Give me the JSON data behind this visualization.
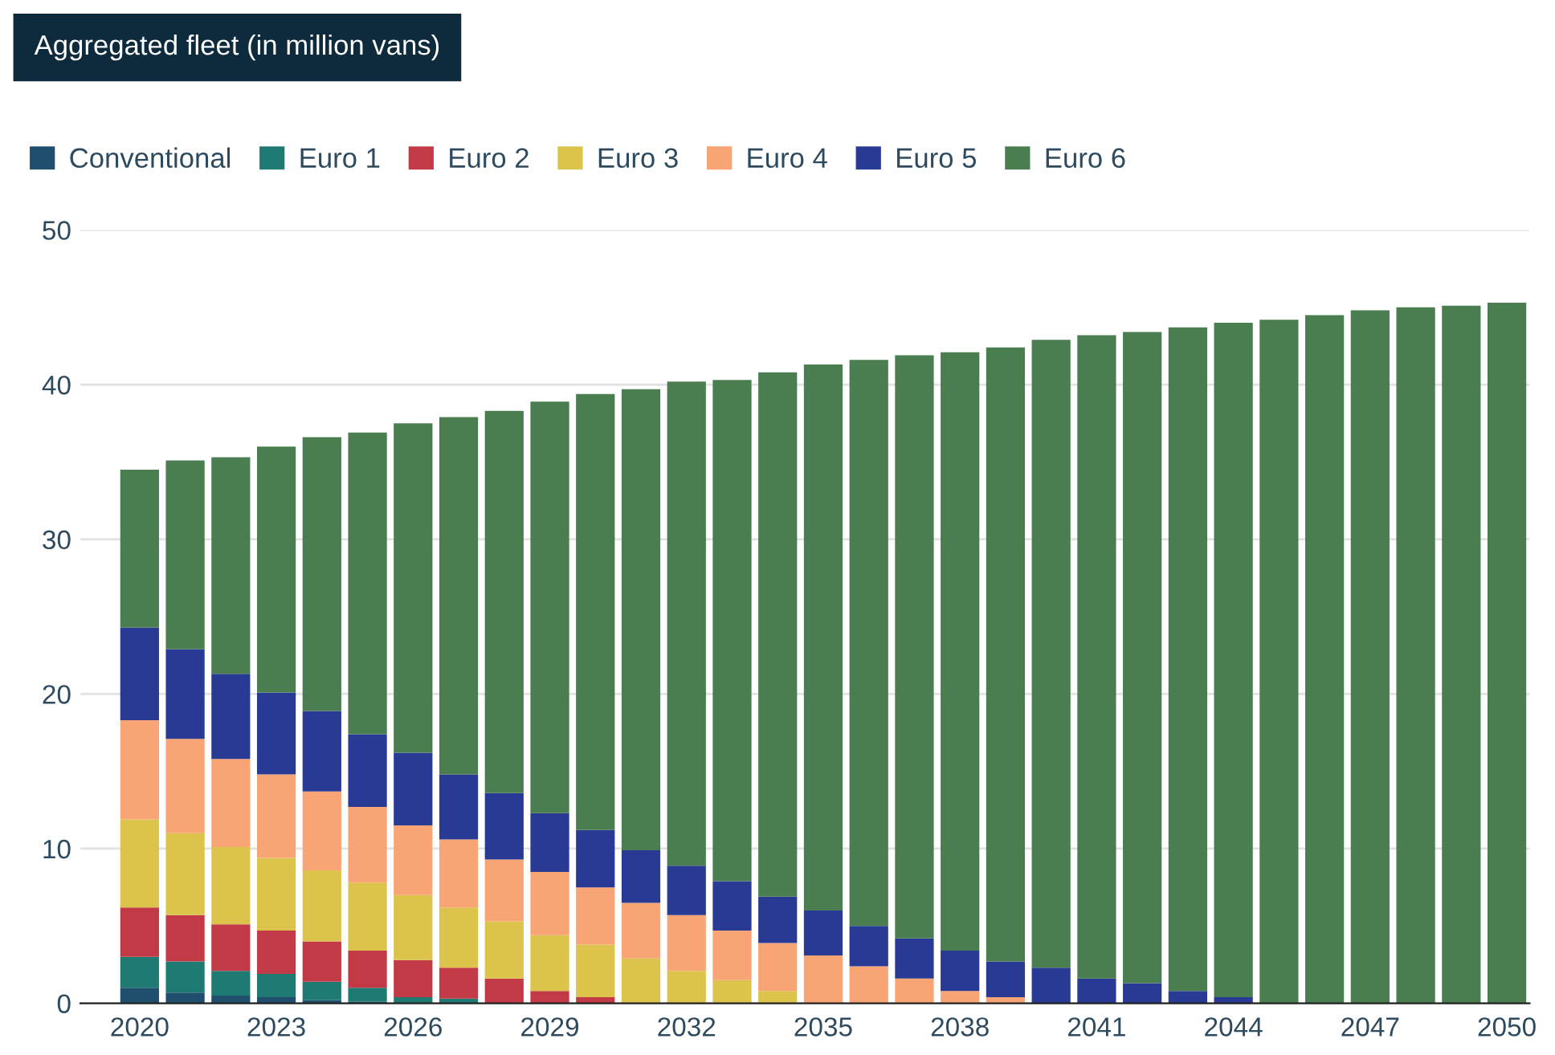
{
  "chart_data": {
    "type": "bar",
    "stacked": true,
    "title": "Aggregated fleet (in million vans)",
    "categories": [
      "2020",
      null,
      null,
      "2023",
      null,
      null,
      "2026",
      null,
      null,
      "2029",
      null,
      null,
      "2032",
      null,
      null,
      "2035",
      null,
      null,
      "2038",
      null,
      null,
      "2041",
      null,
      null,
      "2044",
      null,
      null,
      "2047",
      null,
      null,
      "2050"
    ],
    "series": [
      {
        "name": "Conventional",
        "color": "#1f4e6e",
        "values": [
          1.0,
          0.7,
          0.5,
          0.4,
          0.2,
          0.1,
          0,
          0,
          0,
          0,
          0,
          0,
          0,
          0,
          0,
          0,
          0,
          0,
          0,
          0,
          0,
          0,
          0,
          0,
          0,
          0,
          0,
          0,
          0,
          0,
          0
        ]
      },
      {
        "name": "Euro 1",
        "color": "#1f7a73",
        "values": [
          2.0,
          2.0,
          1.6,
          1.5,
          1.2,
          0.9,
          0.4,
          0.3,
          0,
          0,
          0,
          0,
          0,
          0,
          0,
          0,
          0,
          0,
          0,
          0,
          0,
          0,
          0,
          0,
          0,
          0,
          0,
          0,
          0,
          0,
          0
        ]
      },
      {
        "name": "Euro 2",
        "color": "#c23a45",
        "values": [
          3.2,
          3.0,
          3.0,
          2.8,
          2.6,
          2.4,
          2.4,
          2.0,
          1.6,
          0.8,
          0.4,
          0,
          0,
          0,
          0,
          0,
          0,
          0,
          0,
          0,
          0,
          0,
          0,
          0,
          0,
          0,
          0,
          0,
          0,
          0,
          0
        ]
      },
      {
        "name": "Euro 3",
        "color": "#dcc44c",
        "values": [
          5.7,
          5.3,
          5.0,
          4.7,
          4.6,
          4.4,
          4.2,
          3.9,
          3.7,
          3.6,
          3.4,
          2.9,
          2.1,
          1.5,
          0.8,
          0,
          0,
          0,
          0,
          0,
          0,
          0,
          0,
          0,
          0,
          0,
          0,
          0,
          0,
          0,
          0
        ]
      },
      {
        "name": "Euro 4",
        "color": "#f9a475",
        "values": [
          6.4,
          6.1,
          5.7,
          5.4,
          5.1,
          4.9,
          4.5,
          4.4,
          4.0,
          4.1,
          3.7,
          3.6,
          3.6,
          3.2,
          3.1,
          3.1,
          2.4,
          1.6,
          0.8,
          0.4,
          0,
          0,
          0,
          0,
          0,
          0,
          0,
          0,
          0,
          0,
          0
        ]
      },
      {
        "name": "Euro 5",
        "color": "#283a93",
        "values": [
          6.0,
          5.8,
          5.5,
          5.3,
          5.2,
          4.7,
          4.7,
          4.2,
          4.3,
          3.8,
          3.7,
          3.4,
          3.2,
          3.2,
          3.0,
          2.9,
          2.6,
          2.6,
          2.6,
          2.3,
          2.3,
          1.6,
          1.3,
          0.8,
          0.4,
          0,
          0,
          0,
          0,
          0,
          0
        ]
      },
      {
        "name": "Euro 6",
        "color": "#4a7d4f",
        "values": [
          10.2,
          12.2,
          14.0,
          15.9,
          17.7,
          19.5,
          21.3,
          23.1,
          24.7,
          26.6,
          28.2,
          29.8,
          31.3,
          32.4,
          33.9,
          35.3,
          36.6,
          37.7,
          38.7,
          39.7,
          40.6,
          41.6,
          42.1,
          42.9,
          43.6,
          44.2,
          44.5,
          44.8,
          45.0,
          45.1,
          45.3
        ]
      }
    ],
    "ylim": [
      0,
      50
    ],
    "yticks": [
      0,
      10,
      20,
      30,
      40,
      50
    ],
    "grid": "y",
    "legend": "top left"
  }
}
